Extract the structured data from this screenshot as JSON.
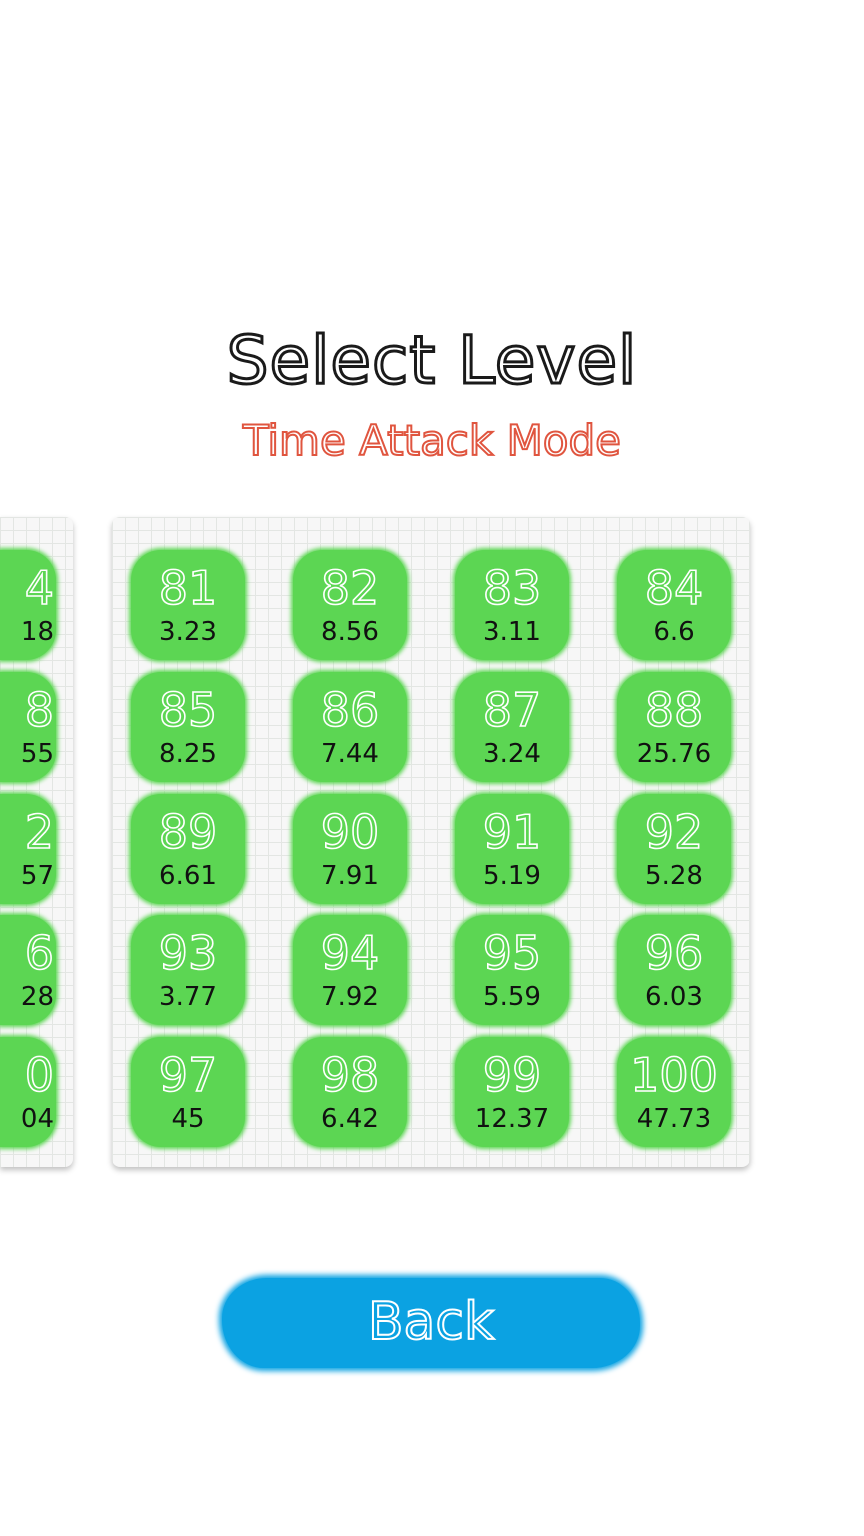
{
  "header": {
    "title": "Select Level",
    "subtitle": "Time Attack Mode"
  },
  "colors": {
    "tile": "#5cd653",
    "title": "#1a1a1a",
    "subtitle": "#e0553f",
    "back_button": "#0ba2e2"
  },
  "previous_page": {
    "tiles_partial": [
      {
        "level": "4",
        "time": "18"
      },
      {
        "level": "8",
        "time": "55"
      },
      {
        "level": "2",
        "time": "57"
      },
      {
        "level": "6",
        "time": "28"
      },
      {
        "level": "0",
        "time": "04"
      }
    ]
  },
  "current_page": {
    "levels": [
      {
        "level": "81",
        "time": "3.23"
      },
      {
        "level": "82",
        "time": "8.56"
      },
      {
        "level": "83",
        "time": "3.11"
      },
      {
        "level": "84",
        "time": "6.6"
      },
      {
        "level": "85",
        "time": "8.25"
      },
      {
        "level": "86",
        "time": "7.44"
      },
      {
        "level": "87",
        "time": "3.24"
      },
      {
        "level": "88",
        "time": "25.76"
      },
      {
        "level": "89",
        "time": "6.61"
      },
      {
        "level": "90",
        "time": "7.91"
      },
      {
        "level": "91",
        "time": "5.19"
      },
      {
        "level": "92",
        "time": "5.28"
      },
      {
        "level": "93",
        "time": "3.77"
      },
      {
        "level": "94",
        "time": "7.92"
      },
      {
        "level": "95",
        "time": "5.59"
      },
      {
        "level": "96",
        "time": "6.03"
      },
      {
        "level": "97",
        "time": "45"
      },
      {
        "level": "98",
        "time": "6.42"
      },
      {
        "level": "99",
        "time": "12.37"
      },
      {
        "level": "100",
        "time": "47.73"
      }
    ]
  },
  "back_button": {
    "label": "Back"
  }
}
